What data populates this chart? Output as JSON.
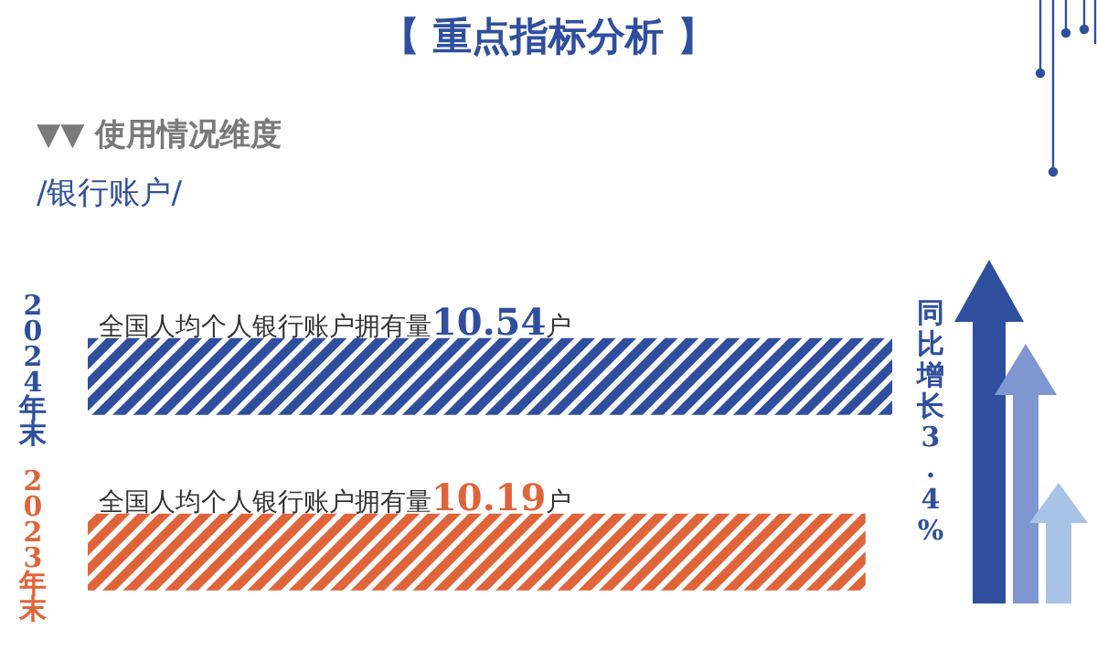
{
  "chart_data": {
    "type": "bar",
    "orientation": "horizontal",
    "title": "【 重点指标分析 】",
    "subtitle": "▼▼ 使用情况维度",
    "categories": [
      "2024年末",
      "2023年末"
    ],
    "values": [
      10.54,
      10.19
    ],
    "colors": [
      "#2f4f9e",
      "#e0643a"
    ],
    "value_labels": [
      "全国人均个人银行账户拥有量10.54户",
      "全国人均个人银行账户拥有量10.19户"
    ],
    "annotations": [
      "/银行账户/",
      "同比增长3.4%"
    ],
    "tick_labels": "y",
    "grid": false,
    "legend": false
  }
}
